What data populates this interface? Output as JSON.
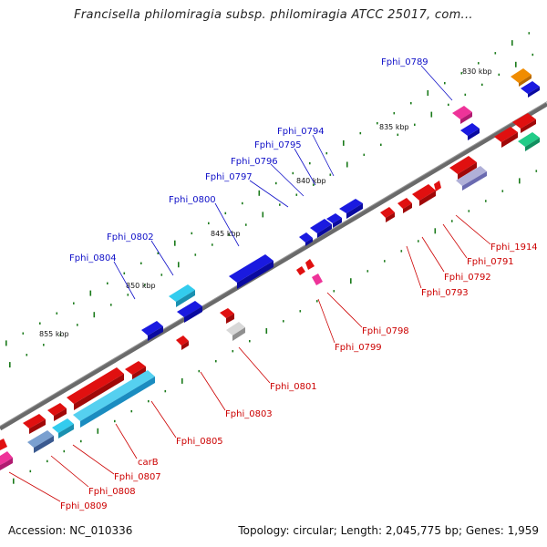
{
  "title": "Francisella philomiragia subsp. philomiragia ATCC 25017, com...",
  "footer": {
    "accession": "Accession: NC_010336",
    "summary": "Topology: circular; Length: 2,045,775 bp; Genes: 1,959"
  },
  "kbp_labels": [
    "830 kbp",
    "835 kbp",
    "840 kbp",
    "845 kbp",
    "850 kbp",
    "855 kbp"
  ],
  "gene_labels_forward": [
    "Fphi_0789",
    "Fphi_0794",
    "Fphi_0795",
    "Fphi_0796",
    "Fphi_0797",
    "Fphi_0800",
    "Fphi_0802",
    "Fphi_0804"
  ],
  "gene_labels_reverse": [
    "Fphi_1914",
    "Fphi_0791",
    "Fphi_0792",
    "Fphi_0793",
    "Fphi_0798",
    "Fphi_0799",
    "Fphi_0801",
    "Fphi_0803",
    "Fphi_0805",
    "carB",
    "Fphi_0807",
    "Fphi_0808",
    "Fphi_0809"
  ],
  "colors": {
    "forward_label": "#1010c8",
    "reverse_label": "#cc0000",
    "backbone": "#6a6a6a",
    "tick": "#1a7a1a",
    "forward_gene": "#1a1ae0",
    "reverse_gene": "#e01010",
    "cyan_gene": "#33ccee",
    "magenta_gene": "#ee3399",
    "grey_gene": "#b0b0b0",
    "steel_gene": "#4a78b0",
    "orange_gene": "#f08c00",
    "teal_gene": "#22cc88",
    "lavender_gene": "#8888cc"
  }
}
